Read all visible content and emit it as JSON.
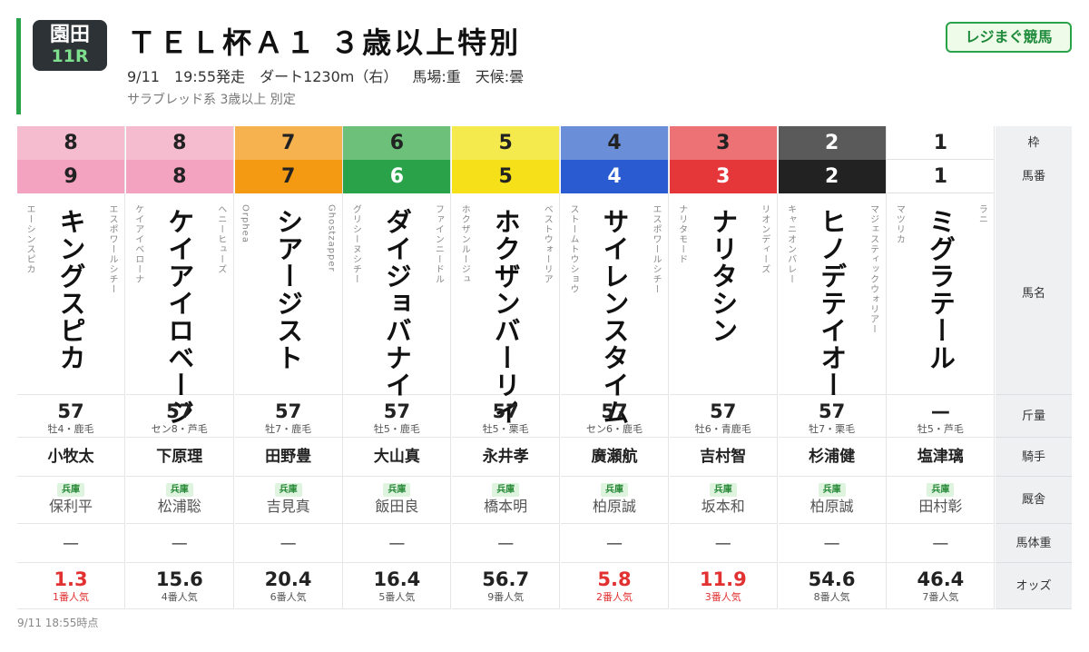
{
  "header": {
    "venue": "園田",
    "race_no": "11R",
    "title": "ＴＥＬ杯Ａ１ ３歳以上特別",
    "date": "9/11",
    "start": "19:55発走",
    "course": "ダート1230m（右）",
    "track": "馬場:重",
    "weather": "天候:曇",
    "conditions": "サラブレッド系 3歳以上 別定",
    "brand": "レジまぐ競馬"
  },
  "labels": {
    "waku": "枠",
    "umaban": "馬番",
    "horse": "馬名",
    "weight": "斤量",
    "jockey": "騎手",
    "stable": "厩舎",
    "body_weight": "馬体重",
    "odds": "オッズ"
  },
  "horses": [
    {
      "waku": "8",
      "umaban": "9",
      "name": "キングスピカ",
      "sire": "エスポワールシチー",
      "dam": "エーシンスピカ",
      "weight": "57",
      "sex_age": "牡4・鹿毛",
      "jockey": "小牧太",
      "region": "兵庫",
      "trainer": "保利平",
      "body_weight": "—",
      "odds": "1.3",
      "pop": "1番人気",
      "waku_color": "#f5bcd0",
      "uma_color": "#f3a2bf",
      "uma_text": "#222"
    },
    {
      "waku": "8",
      "umaban": "8",
      "name": "ケイアイロベージ",
      "sire": "ヘニーヒューズ",
      "dam": "ケイアイベローナ",
      "weight": "57",
      "sex_age": "セン8・芦毛",
      "jockey": "下原理",
      "region": "兵庫",
      "trainer": "松浦聡",
      "body_weight": "—",
      "odds": "15.6",
      "pop": "4番人気",
      "waku_color": "#f5bcd0",
      "uma_color": "#f3a2bf",
      "uma_text": "#222"
    },
    {
      "waku": "7",
      "umaban": "7",
      "name": "シアージスト",
      "sire": "Ghostzapper",
      "dam": "Orphea",
      "weight": "57",
      "sex_age": "牡7・鹿毛",
      "jockey": "田野豊",
      "region": "兵庫",
      "trainer": "吉見真",
      "body_weight": "—",
      "odds": "20.4",
      "pop": "6番人気",
      "waku_color": "#f5b24e",
      "uma_color": "#f39a12",
      "uma_text": "#222"
    },
    {
      "waku": "6",
      "umaban": "6",
      "name": "ダイジョバナイ",
      "sire": "ファインニードル",
      "dam": "グリシーヌシチー",
      "weight": "57",
      "sex_age": "牡5・鹿毛",
      "jockey": "大山真",
      "region": "兵庫",
      "trainer": "飯田良",
      "body_weight": "—",
      "odds": "16.4",
      "pop": "5番人気",
      "waku_color": "#6cc07a",
      "uma_color": "#2aa24a",
      "uma_text": "#fff"
    },
    {
      "waku": "5",
      "umaban": "5",
      "name": "ホクザンバーリイ",
      "sire": "ベストウォーリア",
      "dam": "ホクザンルージュ",
      "weight": "57",
      "sex_age": "牡5・栗毛",
      "jockey": "永井孝",
      "region": "兵庫",
      "trainer": "橋本明",
      "body_weight": "—",
      "odds": "56.7",
      "pop": "9番人気",
      "waku_color": "#f4ea4e",
      "uma_color": "#f5e01a",
      "uma_text": "#222"
    },
    {
      "waku": "4",
      "umaban": "4",
      "name": "サイレンスタイム",
      "sire": "エスポワールシチー",
      "dam": "ストームトウショウ",
      "weight": "57",
      "sex_age": "セン6・鹿毛",
      "jockey": "廣瀬航",
      "region": "兵庫",
      "trainer": "柏原誠",
      "body_weight": "—",
      "odds": "5.8",
      "pop": "2番人気",
      "waku_color": "#6a8ed8",
      "uma_color": "#2a5bd0",
      "uma_text": "#fff"
    },
    {
      "waku": "3",
      "umaban": "3",
      "name": "ナリタシン",
      "sire": "リオンディーズ",
      "dam": "ナリタモード",
      "weight": "57",
      "sex_age": "牡6・青鹿毛",
      "jockey": "吉村智",
      "region": "兵庫",
      "trainer": "坂本和",
      "body_weight": "—",
      "odds": "11.9",
      "pop": "3番人気",
      "waku_color": "#ec7276",
      "uma_color": "#e5363a",
      "uma_text": "#fff"
    },
    {
      "waku": "2",
      "umaban": "2",
      "name": "ヒノデテイオー",
      "sire": "マジェスティックウォリアー",
      "dam": "キャニオンバレー",
      "weight": "57",
      "sex_age": "牡7・栗毛",
      "jockey": "杉浦健",
      "region": "兵庫",
      "trainer": "柏原誠",
      "body_weight": "—",
      "odds": "54.6",
      "pop": "8番人気",
      "waku_color": "#5a5a5a",
      "uma_color": "#222222",
      "uma_text": "#fff"
    },
    {
      "waku": "1",
      "umaban": "1",
      "name": "ミグラテール",
      "sire": "ラニ",
      "dam": "マツリカ",
      "weight": "—",
      "sex_age": "牡5・芦毛",
      "jockey": "塩津璃",
      "region": "兵庫",
      "trainer": "田村彰",
      "body_weight": "—",
      "odds": "46.4",
      "pop": "7番人気",
      "waku_color": "#ffffff",
      "uma_color": "#ffffff",
      "uma_text": "#222"
    }
  ],
  "footer": "9/11 18:55時点",
  "colors": {
    "accent": "#2aa24a",
    "odds_top": "#e23131"
  }
}
